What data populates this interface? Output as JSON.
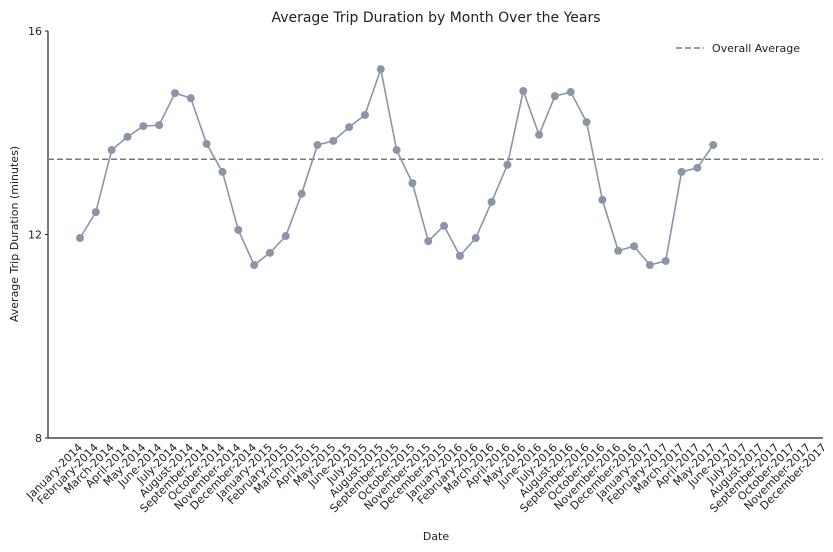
{
  "chart_data": {
    "type": "line",
    "title": "Average Trip Duration by Month Over the Years",
    "x_label": "Date",
    "y_label": "Average Trip Duration (minutes)",
    "categories": [
      "January-2014",
      "February-2014",
      "March-2014",
      "April-2014",
      "May-2014",
      "June-2014",
      "July-2014",
      "August-2014",
      "September-2014",
      "October-2014",
      "November-2014",
      "December-2014",
      "January-2015",
      "February-2015",
      "March-2015",
      "April-2015",
      "May-2015",
      "June-2015",
      "July-2015",
      "August-2015",
      "September-2015",
      "October-2015",
      "November-2015",
      "December-2015",
      "January-2016",
      "February-2016",
      "March-2016",
      "April-2016",
      "May-2016",
      "June-2016",
      "July-2016",
      "August-2016",
      "September-2016",
      "October-2016",
      "November-2016",
      "December-2016",
      "January-2017",
      "February-2017",
      "March-2017",
      "April-2017",
      "May-2017",
      "June-2017",
      "July-2017",
      "August-2017",
      "September-2017",
      "October-2017",
      "November-2017",
      "December-2017"
    ],
    "series": [
      {
        "name": null,
        "color": "#8a96a8",
        "values": [
          11.93,
          12.44,
          13.66,
          13.92,
          14.13,
          14.15,
          14.78,
          14.68,
          13.78,
          13.23,
          12.09,
          11.4,
          11.64,
          11.97,
          12.8,
          13.76,
          13.84,
          14.11,
          14.35,
          15.25,
          13.66,
          13.01,
          11.87,
          12.17,
          11.58,
          11.93,
          12.64,
          13.37,
          14.82,
          13.96,
          14.72,
          14.8,
          14.21,
          12.68,
          11.68,
          11.77,
          11.4,
          11.48,
          13.23,
          13.31,
          13.76,
          null,
          null,
          null,
          null,
          null,
          null,
          null
        ]
      }
    ],
    "average": {
      "name": "Overall Average",
      "value": 13.48,
      "color": "#7a7a7a"
    },
    "ylim": [
      8,
      16
    ],
    "yticks": [
      8,
      12,
      16
    ],
    "grid": false,
    "legend": "upper right"
  }
}
